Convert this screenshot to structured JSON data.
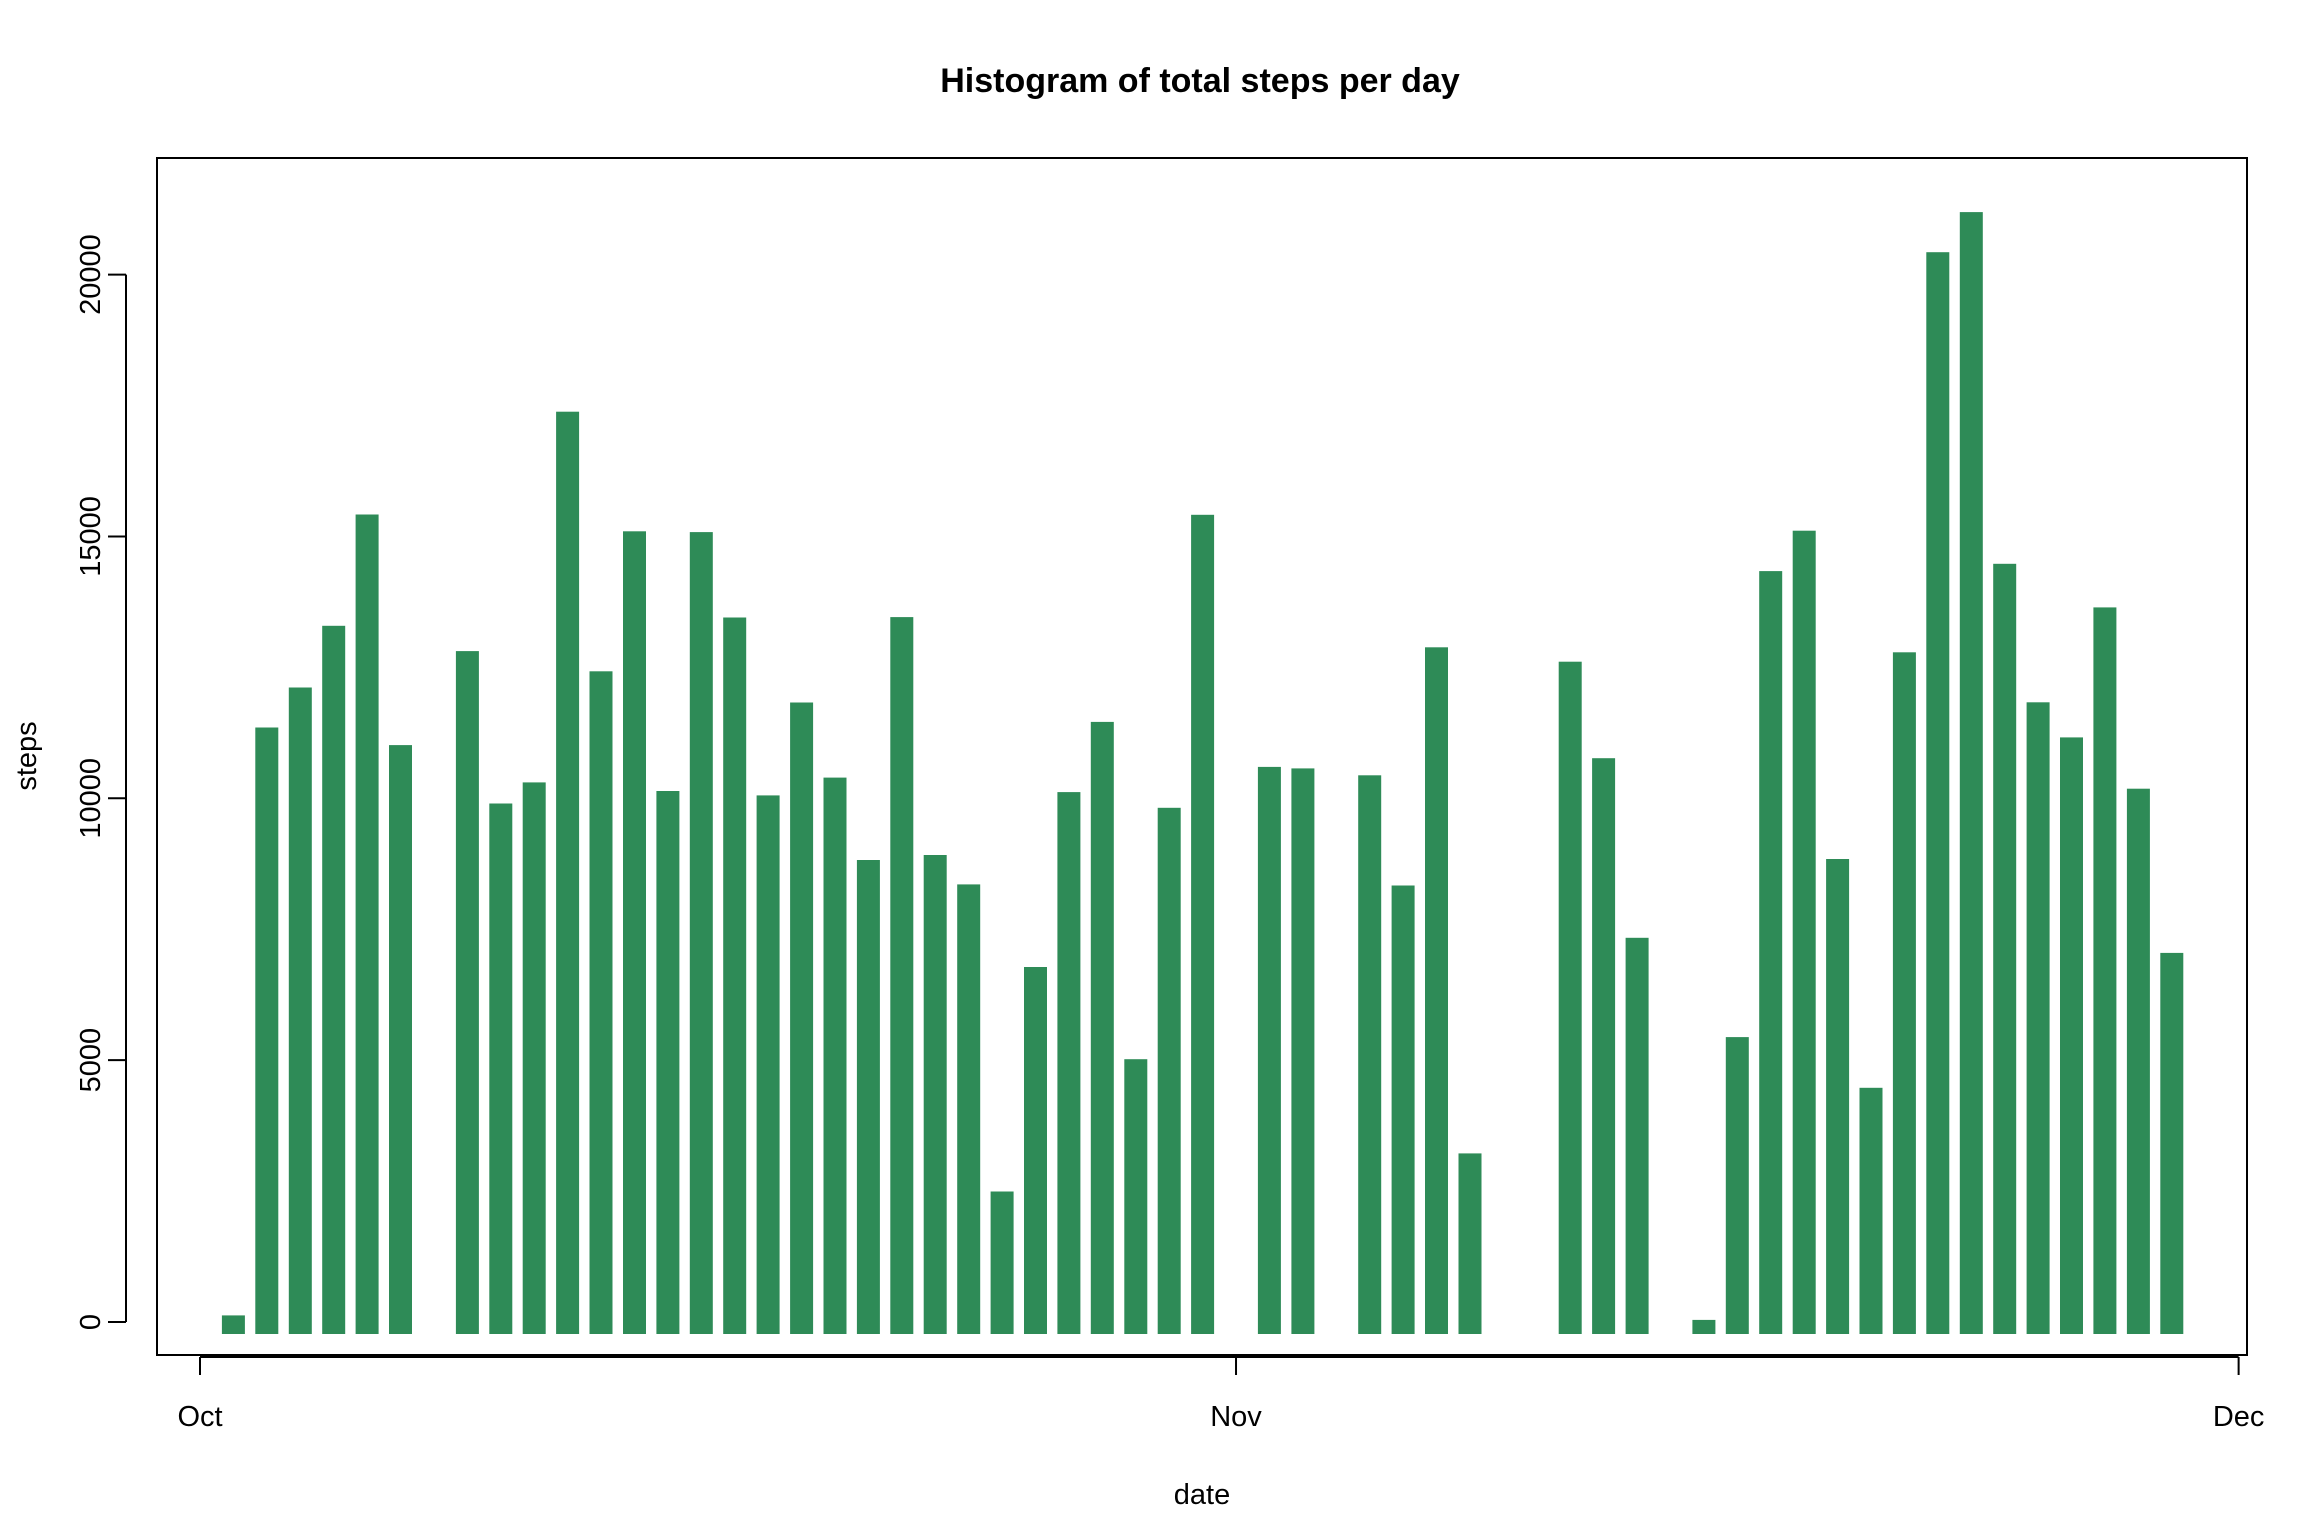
{
  "chart_data": {
    "type": "bar",
    "title": "Histogram of total steps per day",
    "xlabel": "date",
    "ylabel": "steps",
    "bar_color": "#2E8B57",
    "x_ticks": [
      "Oct",
      "Nov",
      "Dec"
    ],
    "y_ticks": [
      0,
      5000,
      10000,
      15000,
      20000
    ],
    "ylim": [
      0,
      21194
    ],
    "categories": [
      "2012-10-01",
      "2012-10-02",
      "2012-10-03",
      "2012-10-04",
      "2012-10-05",
      "2012-10-06",
      "2012-10-07",
      "2012-10-08",
      "2012-10-09",
      "2012-10-10",
      "2012-10-11",
      "2012-10-12",
      "2012-10-13",
      "2012-10-14",
      "2012-10-15",
      "2012-10-16",
      "2012-10-17",
      "2012-10-18",
      "2012-10-19",
      "2012-10-20",
      "2012-10-21",
      "2012-10-22",
      "2012-10-23",
      "2012-10-24",
      "2012-10-25",
      "2012-10-26",
      "2012-10-27",
      "2012-10-28",
      "2012-10-29",
      "2012-10-30",
      "2012-10-31",
      "2012-11-01",
      "2012-11-02",
      "2012-11-03",
      "2012-11-04",
      "2012-11-05",
      "2012-11-06",
      "2012-11-07",
      "2012-11-08",
      "2012-11-09",
      "2012-11-10",
      "2012-11-11",
      "2012-11-12",
      "2012-11-13",
      "2012-11-14",
      "2012-11-15",
      "2012-11-16",
      "2012-11-17",
      "2012-11-18",
      "2012-11-19",
      "2012-11-20",
      "2012-11-21",
      "2012-11-22",
      "2012-11-23",
      "2012-11-24",
      "2012-11-25",
      "2012-11-26",
      "2012-11-27",
      "2012-11-28",
      "2012-11-29",
      "2012-11-30"
    ],
    "values": [
      null,
      126,
      11352,
      12116,
      13294,
      15420,
      11015,
      null,
      12811,
      9900,
      10304,
      17382,
      12426,
      15098,
      10139,
      15084,
      13452,
      10056,
      11829,
      10395,
      8821,
      13460,
      8918,
      8355,
      2492,
      6778,
      10119,
      11458,
      5018,
      9819,
      15414,
      null,
      10600,
      10571,
      null,
      10439,
      8334,
      12883,
      3219,
      null,
      null,
      12608,
      10765,
      7336,
      null,
      41,
      5441,
      14339,
      15110,
      8841,
      4472,
      12787,
      20427,
      21194,
      14478,
      11834,
      11162,
      13646,
      10183,
      7047,
      null
    ]
  }
}
